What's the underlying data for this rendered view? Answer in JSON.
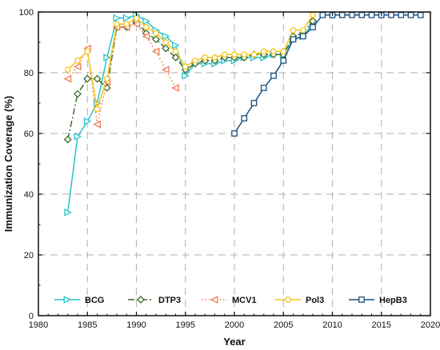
{
  "chart_data": {
    "type": "line",
    "title": "",
    "xlabel": "Year",
    "ylabel": "Immunization Coverage (%)",
    "xlim": [
      1980,
      2020
    ],
    "ylim": [
      0,
      100
    ],
    "xticks": [
      1980,
      1985,
      1990,
      1995,
      2000,
      2005,
      2010,
      2015,
      2020
    ],
    "yticks": [
      0,
      20,
      40,
      60,
      80,
      100
    ],
    "grid": "dashed",
    "legend": "bottom",
    "series": [
      {
        "name": "BCG",
        "color": "#29c4c9",
        "marker": "triangle-right",
        "line_style": "solid",
        "x": [
          1983,
          1984,
          1985,
          1986,
          1987,
          1988,
          1989,
          1990,
          1991,
          1992,
          1993,
          1994,
          1995,
          1996,
          1997,
          1998,
          1999,
          2000,
          2001,
          2002,
          2003,
          2004,
          2005,
          2006,
          2007,
          2008
        ],
        "y": [
          34,
          59,
          64,
          70,
          85,
          98,
          98,
          99,
          97,
          94,
          92,
          89,
          79,
          83,
          83,
          83,
          84,
          84,
          85,
          85,
          85,
          86,
          86,
          91,
          92,
          96
        ]
      },
      {
        "name": "DTP3",
        "color": "#3d6b2c",
        "marker": "diamond",
        "line_style": "dashdot",
        "x": [
          1983,
          1984,
          1985,
          1986,
          1987,
          1988,
          1989,
          1990,
          1991,
          1992,
          1993,
          1994,
          1995,
          1996,
          1997,
          1998,
          1999,
          2000,
          2001,
          2002,
          2003,
          2004,
          2005,
          2006,
          2007,
          2008
        ],
        "y": [
          58,
          73,
          78,
          78,
          75,
          95,
          95,
          97,
          93,
          91,
          88,
          85,
          81,
          83,
          84,
          84,
          85,
          85,
          85,
          86,
          86,
          86,
          86,
          92,
          93,
          97
        ]
      },
      {
        "name": "MCV1",
        "color": "#f07a55",
        "marker": "triangle-left",
        "line_style": "dotted",
        "x": [
          1983,
          1984,
          1985,
          1986,
          1987,
          1988,
          1989,
          1990,
          1991,
          1992,
          1993,
          1994
        ],
        "y": [
          78,
          82,
          88,
          63,
          77,
          95,
          95,
          96,
          92,
          87,
          81,
          75
        ]
      },
      {
        "name": "Pol3",
        "color": "#f5c518",
        "marker": "circle",
        "line_style": "solid",
        "x": [
          1983,
          1984,
          1985,
          1986,
          1987,
          1988,
          1989,
          1990,
          1991,
          1992,
          1993,
          1994,
          1995,
          1996,
          1997,
          1998,
          1999,
          2000,
          2001,
          2002,
          2003,
          2004,
          2005,
          2006,
          2007,
          2008
        ],
        "y": [
          81,
          84,
          87,
          68,
          78,
          96,
          96,
          98,
          95,
          93,
          90,
          87,
          82,
          84,
          85,
          85,
          86,
          86,
          86,
          86,
          87,
          87,
          87,
          94,
          94,
          99
        ]
      },
      {
        "name": "HepB3",
        "color": "#1a4f7e",
        "marker": "square",
        "line_style": "solid",
        "x": [
          2000,
          2001,
          2002,
          2003,
          2004,
          2005,
          2006,
          2007,
          2008,
          2009,
          2010,
          2011,
          2012,
          2013,
          2014,
          2015,
          2016,
          2017,
          2018,
          2019
        ],
        "y": [
          60,
          65,
          70,
          75,
          79,
          84,
          91,
          92,
          95,
          99,
          99,
          99,
          99,
          99,
          99,
          99,
          99,
          99,
          99,
          99
        ]
      }
    ]
  }
}
